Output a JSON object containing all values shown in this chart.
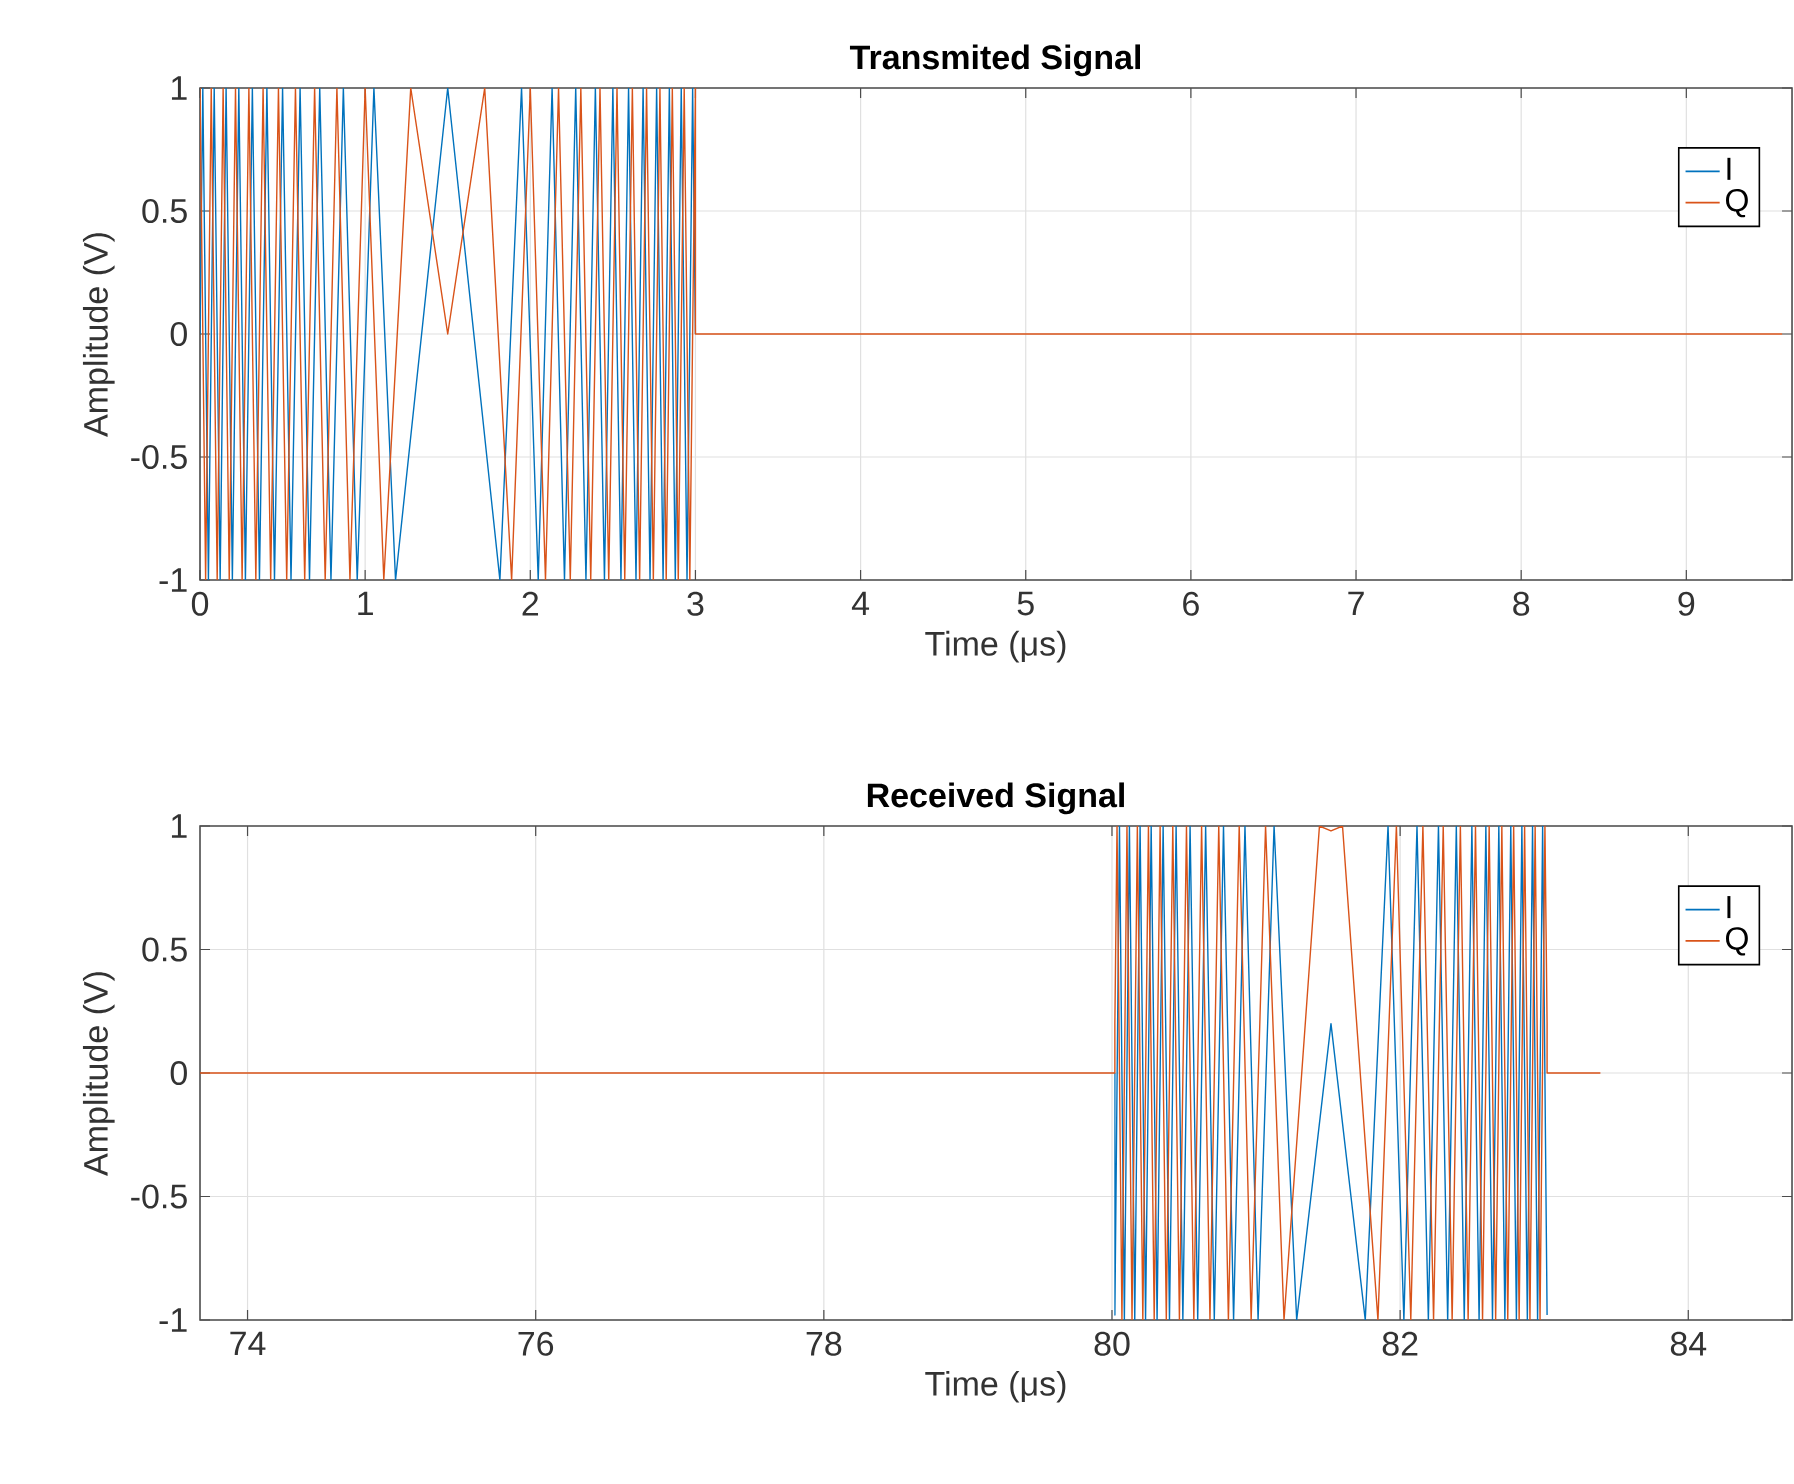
{
  "chart_data": [
    {
      "type": "line",
      "title": "Transmited Signal",
      "xlabel": "Time (μs)",
      "ylabel": "Amplitude (V)",
      "xlim": [
        0,
        9.64
      ],
      "ylim": [
        -1,
        1
      ],
      "xticks": [
        0,
        1,
        2,
        3,
        4,
        5,
        6,
        7,
        8,
        9
      ],
      "yticks": [
        -1,
        -0.5,
        0,
        0.5,
        1
      ],
      "grid": true,
      "legend": "top right",
      "series": [
        {
          "name": "I",
          "color": "#0072bd",
          "x": [
            0,
            0.017,
            0.051,
            0.086,
            0.122,
            0.158,
            0.196,
            0.235,
            0.275,
            0.317,
            0.36,
            0.405,
            0.451,
            0.5,
            0.551,
            0.606,
            0.663,
            0.725,
            0.793,
            0.868,
            0.952,
            1.053,
            1.184,
            1.5,
            1.816,
            1.947,
            2.048,
            2.132,
            2.207,
            2.275,
            2.337,
            2.394,
            2.449,
            2.5,
            2.549,
            2.595,
            2.64,
            2.683,
            2.725,
            2.765,
            2.804,
            2.842,
            2.878,
            2.914,
            2.949,
            2.983,
            3
          ],
          "values": [
            0,
            1,
            -1,
            1,
            -1,
            1,
            -1,
            1,
            -1,
            1,
            -1,
            1,
            -1,
            1,
            -1,
            1,
            -1,
            1,
            -1,
            1,
            -1,
            1,
            -1,
            1,
            -1,
            1,
            -1,
            1,
            -1,
            1,
            -1,
            1,
            -1,
            1,
            -1,
            1,
            -1,
            1,
            -1,
            1,
            -1,
            1,
            -1,
            1,
            -1,
            1,
            0
          ]
        },
        {
          "name": "Q",
          "color": "#d95319",
          "x": [
            0,
            0.034,
            0.068,
            0.104,
            0.14,
            0.177,
            0.215,
            0.255,
            0.296,
            0.338,
            0.382,
            0.428,
            0.475,
            0.525,
            0.578,
            0.634,
            0.694,
            0.758,
            0.829,
            0.908,
            1.0,
            1.113,
            1.276,
            1.5,
            1.724,
            1.887,
            2.0,
            2.092,
            2.171,
            2.242,
            2.306,
            2.366,
            2.422,
            2.475,
            2.525,
            2.572,
            2.618,
            2.662,
            2.704,
            2.745,
            2.785,
            2.823,
            2.86,
            2.896,
            2.932,
            2.966,
            3.0,
            3.0,
            9.58
          ],
          "values": [
            1,
            -1,
            1,
            -1,
            1,
            -1,
            1,
            -1,
            1,
            -1,
            1,
            -1,
            1,
            -1,
            1,
            -1,
            1,
            -1,
            1,
            -1,
            1,
            -1,
            1,
            0,
            1,
            -1,
            1,
            -1,
            1,
            -1,
            1,
            -1,
            1,
            -1,
            1,
            -1,
            1,
            -1,
            1,
            -1,
            1,
            -1,
            1,
            -1,
            1,
            -1,
            1,
            0,
            0
          ]
        }
      ]
    },
    {
      "type": "line",
      "title": "Received Signal",
      "xlabel": "Time (μs)",
      "ylabel": "Amplitude (V)",
      "xlim": [
        73.67,
        84.72
      ],
      "ylim": [
        -1,
        1
      ],
      "xticks": [
        74,
        76,
        78,
        80,
        82,
        84
      ],
      "yticks": [
        -1,
        -0.5,
        0,
        0.5,
        1
      ],
      "grid": true,
      "legend": "top right",
      "series": [
        {
          "name": "I",
          "color": "#0072bd",
          "x": [
            80.02,
            80.02,
            80.052,
            80.086,
            80.121,
            80.158,
            80.195,
            80.233,
            80.272,
            80.313,
            80.355,
            80.399,
            80.445,
            80.492,
            80.542,
            80.595,
            80.65,
            80.71,
            80.774,
            80.844,
            80.923,
            81.014,
            81.125,
            81.282,
            81.52,
            81.758,
            81.916,
            82.026,
            82.117,
            82.196,
            82.266,
            82.33,
            82.39,
            82.445,
            82.498,
            82.548,
            82.595,
            82.641,
            82.685,
            82.727,
            82.768,
            82.807,
            82.845,
            82.883,
            82.919,
            82.954,
            82.989,
            83.02
          ],
          "values": [
            0,
            -0.98,
            1,
            -1,
            1,
            -1,
            1,
            -1,
            1,
            -1,
            1,
            -1,
            1,
            -1,
            1,
            -1,
            1,
            -1,
            1,
            -1,
            1,
            -1,
            1,
            -1,
            0.2,
            -1,
            1,
            -1,
            1,
            -1,
            1,
            -1,
            1,
            -1,
            1,
            -1,
            1,
            -1,
            1,
            -1,
            1,
            -1,
            1,
            -1,
            1,
            -1,
            1,
            -0.98
          ]
        },
        {
          "name": "Q",
          "color": "#d95319",
          "x": [
            73.67,
            80.02,
            80.02,
            80.035,
            80.069,
            80.104,
            80.139,
            80.176,
            80.214,
            80.253,
            80.293,
            80.334,
            80.377,
            80.422,
            80.468,
            80.517,
            80.568,
            80.622,
            80.68,
            80.741,
            80.808,
            80.883,
            80.966,
            81.066,
            81.194,
            81.44,
            81.52,
            81.6,
            81.846,
            81.974,
            82.074,
            82.158,
            82.232,
            82.299,
            82.361,
            82.418,
            82.472,
            82.523,
            82.572,
            82.618,
            82.663,
            82.706,
            82.747,
            82.788,
            82.826,
            82.864,
            82.901,
            82.937,
            82.971,
            83.005,
            83.02,
            83.02,
            83.39
          ],
          "values": [
            0,
            0,
            0.2,
            1,
            -1,
            1,
            -1,
            1,
            -1,
            1,
            -1,
            1,
            -1,
            1,
            -1,
            1,
            -1,
            1,
            -1,
            1,
            -1,
            1,
            -1,
            1,
            -1,
            1,
            0.98,
            1,
            -1,
            1,
            -1,
            1,
            -1,
            1,
            -1,
            1,
            -1,
            1,
            -1,
            1,
            -1,
            1,
            -1,
            1,
            -1,
            1,
            -1,
            1,
            -1,
            1,
            0.2,
            0,
            0
          ]
        }
      ]
    }
  ]
}
